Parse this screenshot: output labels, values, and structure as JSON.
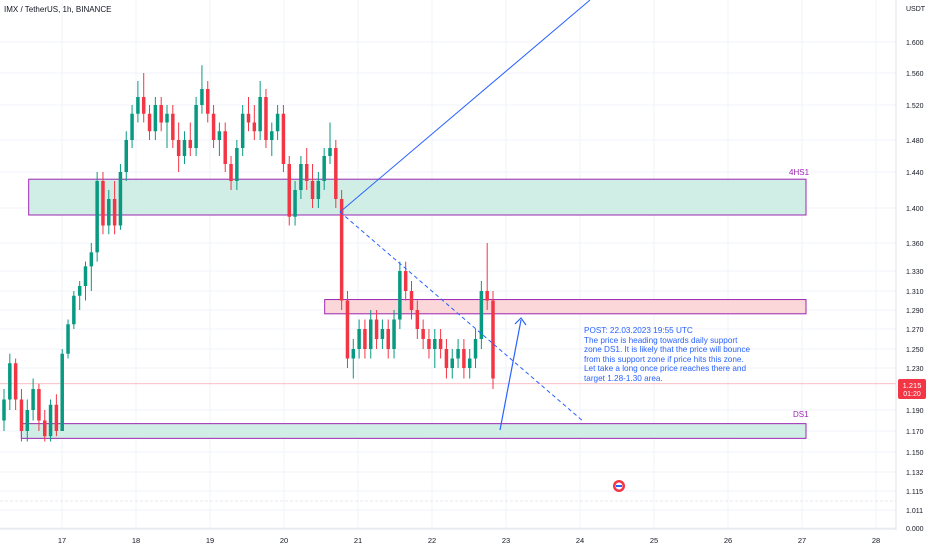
{
  "header": {
    "title": "IMX / TetherUS, 1h, BINANCE"
  },
  "axis": {
    "unit_label": "USDT",
    "y_ticks": [
      "1.600",
      "1.560",
      "1.520",
      "1.480",
      "1.440",
      "1.400",
      "1.360",
      "1.330",
      "1.310",
      "1.290",
      "1.270",
      "1.250",
      "1.230",
      "1.190",
      "1.170",
      "1.150",
      "1.132",
      "1.115",
      "1.011",
      "0.000"
    ],
    "x_ticks": [
      "17",
      "18",
      "19",
      "20",
      "21",
      "22",
      "23",
      "24",
      "25",
      "26",
      "27",
      "28"
    ],
    "price_label": "1.215",
    "countdown_label": "01:20"
  },
  "colors": {
    "up": "#089981",
    "down": "#f23645",
    "zone_green_fill": "#d1eee6",
    "zone_red_fill": "#fbd7d9",
    "zone_border": "#9c27b0",
    "trend_line": "#2962ff",
    "price_line": "#f7a9b0"
  },
  "zones": [
    {
      "label": "4HS1",
      "top": 1.432,
      "bottom": 1.392,
      "from_day": 16.55
    },
    {
      "label": "",
      "top": 1.301,
      "bottom": 1.286,
      "from_day": 20.55
    },
    {
      "label": "DS1",
      "top": 1.177,
      "bottom": 1.163,
      "from_day": 16.45
    }
  ],
  "note": {
    "lines": [
      "POST: 22.03.2023 19:55 UTC",
      "The price is heading towards daily support",
      "zone DS1. It is likely that the price will bounce",
      "from this support zone if price hits this zone.",
      "Let take a long once price reaches there and",
      "target 1.28-1.30 area."
    ]
  },
  "chart_data": {
    "type": "candlestick",
    "title": "IMX / TetherUS, 1h, BINANCE",
    "ylabel": "USDT",
    "last_price": 1.215,
    "y_axis_ticks": [
      1.6,
      1.56,
      1.52,
      1.48,
      1.44,
      1.4,
      1.36,
      1.33,
      1.31,
      1.29,
      1.27,
      1.25,
      1.23,
      1.19,
      1.17,
      1.15,
      1.132,
      1.115,
      1.011,
      0.0
    ],
    "series": [
      {
        "values": [
          [
            1.18,
            1.21,
            1.17,
            1.2
          ],
          [
            1.2,
            1.245,
            1.19,
            1.235
          ],
          [
            1.235,
            1.24,
            1.19,
            1.2
          ],
          [
            1.2,
            1.21,
            1.16,
            1.17
          ],
          [
            1.17,
            1.2,
            1.16,
            1.19
          ],
          [
            1.19,
            1.22,
            1.18,
            1.21
          ],
          [
            1.21,
            1.215,
            1.17,
            1.18
          ],
          [
            1.18,
            1.19,
            1.16,
            1.165
          ],
          [
            1.165,
            1.2,
            1.16,
            1.195
          ],
          [
            1.195,
            1.205,
            1.165,
            1.17
          ],
          [
            1.17,
            1.25,
            1.17,
            1.245
          ],
          [
            1.245,
            1.28,
            1.24,
            1.275
          ],
          [
            1.275,
            1.31,
            1.27,
            1.305
          ],
          [
            1.305,
            1.32,
            1.29,
            1.315
          ],
          [
            1.315,
            1.34,
            1.3,
            1.335
          ],
          [
            1.335,
            1.36,
            1.31,
            1.35
          ],
          [
            1.35,
            1.44,
            1.34,
            1.43
          ],
          [
            1.43,
            1.44,
            1.37,
            1.38
          ],
          [
            1.38,
            1.42,
            1.37,
            1.41
          ],
          [
            1.41,
            1.43,
            1.37,
            1.38
          ],
          [
            1.38,
            1.45,
            1.375,
            1.44
          ],
          [
            1.44,
            1.49,
            1.43,
            1.48
          ],
          [
            1.48,
            1.52,
            1.47,
            1.51
          ],
          [
            1.51,
            1.55,
            1.5,
            1.53
          ],
          [
            1.53,
            1.56,
            1.5,
            1.51
          ],
          [
            1.51,
            1.52,
            1.48,
            1.49
          ],
          [
            1.49,
            1.53,
            1.48,
            1.52
          ],
          [
            1.52,
            1.53,
            1.49,
            1.5
          ],
          [
            1.5,
            1.52,
            1.47,
            1.51
          ],
          [
            1.51,
            1.52,
            1.47,
            1.48
          ],
          [
            1.48,
            1.5,
            1.44,
            1.46
          ],
          [
            1.46,
            1.49,
            1.45,
            1.48
          ],
          [
            1.48,
            1.5,
            1.46,
            1.47
          ],
          [
            1.47,
            1.53,
            1.46,
            1.52
          ],
          [
            1.52,
            1.57,
            1.51,
            1.54
          ],
          [
            1.54,
            1.55,
            1.5,
            1.51
          ],
          [
            1.51,
            1.52,
            1.47,
            1.48
          ],
          [
            1.48,
            1.5,
            1.46,
            1.49
          ],
          [
            1.49,
            1.5,
            1.44,
            1.45
          ],
          [
            1.45,
            1.46,
            1.42,
            1.43
          ],
          [
            1.43,
            1.48,
            1.42,
            1.47
          ],
          [
            1.47,
            1.52,
            1.46,
            1.51
          ],
          [
            1.51,
            1.53,
            1.49,
            1.5
          ],
          [
            1.5,
            1.52,
            1.48,
            1.49
          ],
          [
            1.49,
            1.55,
            1.48,
            1.53
          ],
          [
            1.53,
            1.54,
            1.47,
            1.48
          ],
          [
            1.48,
            1.5,
            1.46,
            1.49
          ],
          [
            1.49,
            1.52,
            1.48,
            1.51
          ],
          [
            1.51,
            1.52,
            1.44,
            1.45
          ],
          [
            1.45,
            1.46,
            1.38,
            1.39
          ],
          [
            1.39,
            1.43,
            1.38,
            1.42
          ],
          [
            1.42,
            1.46,
            1.41,
            1.45
          ],
          [
            1.45,
            1.47,
            1.42,
            1.43
          ],
          [
            1.43,
            1.45,
            1.4,
            1.41
          ],
          [
            1.41,
            1.44,
            1.4,
            1.43
          ],
          [
            1.43,
            1.47,
            1.42,
            1.46
          ],
          [
            1.46,
            1.5,
            1.45,
            1.47
          ],
          [
            1.47,
            1.48,
            1.4,
            1.41
          ],
          [
            1.41,
            1.42,
            1.29,
            1.3
          ],
          [
            1.3,
            1.31,
            1.23,
            1.24
          ],
          [
            1.24,
            1.26,
            1.22,
            1.25
          ],
          [
            1.25,
            1.28,
            1.24,
            1.27
          ],
          [
            1.27,
            1.28,
            1.24,
            1.25
          ],
          [
            1.25,
            1.29,
            1.24,
            1.28
          ],
          [
            1.28,
            1.29,
            1.25,
            1.26
          ],
          [
            1.26,
            1.28,
            1.25,
            1.27
          ],
          [
            1.27,
            1.28,
            1.24,
            1.25
          ],
          [
            1.25,
            1.29,
            1.24,
            1.28
          ],
          [
            1.28,
            1.34,
            1.27,
            1.33
          ],
          [
            1.33,
            1.34,
            1.3,
            1.31
          ],
          [
            1.31,
            1.32,
            1.28,
            1.29
          ],
          [
            1.29,
            1.3,
            1.26,
            1.27
          ],
          [
            1.27,
            1.28,
            1.25,
            1.26
          ],
          [
            1.26,
            1.27,
            1.24,
            1.25
          ],
          [
            1.25,
            1.27,
            1.23,
            1.26
          ],
          [
            1.26,
            1.27,
            1.24,
            1.25
          ],
          [
            1.25,
            1.26,
            1.22,
            1.23
          ],
          [
            1.23,
            1.25,
            1.22,
            1.24
          ],
          [
            1.24,
            1.26,
            1.23,
            1.25
          ],
          [
            1.25,
            1.26,
            1.22,
            1.23
          ],
          [
            1.23,
            1.25,
            1.22,
            1.24
          ],
          [
            1.24,
            1.27,
            1.23,
            1.26
          ],
          [
            1.26,
            1.32,
            1.25,
            1.31
          ],
          [
            1.31,
            1.36,
            1.29,
            1.3
          ],
          [
            1.3,
            1.31,
            1.21,
            1.22
          ]
        ]
      }
    ]
  }
}
